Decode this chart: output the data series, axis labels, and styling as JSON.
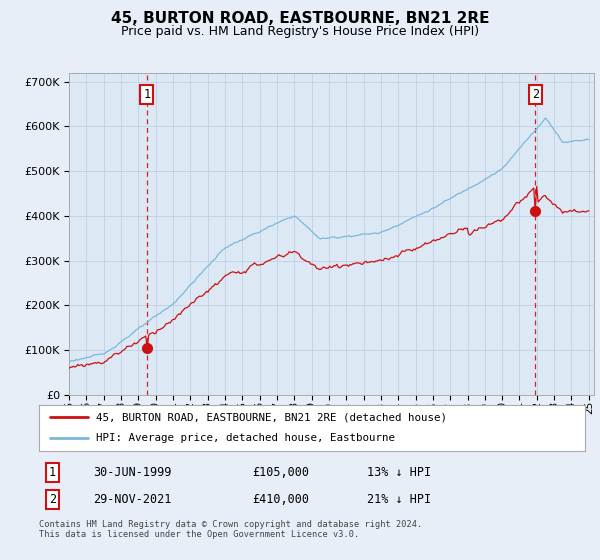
{
  "title": "45, BURTON ROAD, EASTBOURNE, BN21 2RE",
  "subtitle": "Price paid vs. HM Land Registry's House Price Index (HPI)",
  "title_fontsize": 11,
  "subtitle_fontsize": 9,
  "background_color": "#e8eef8",
  "plot_bg_color": "#dde8f5",
  "ylim": [
    0,
    720000
  ],
  "yticks": [
    0,
    100000,
    200000,
    300000,
    400000,
    500000,
    600000,
    700000
  ],
  "legend1_label": "45, BURTON ROAD, EASTBOURNE, BN21 2RE (detached house)",
  "legend2_label": "HPI: Average price, detached house, Eastbourne",
  "marker1_value": 105000,
  "marker1_date": "30-JUN-1999",
  "marker1_year": 1999.5,
  "marker1_hpi_text": "13% ↓ HPI",
  "marker2_value": 410000,
  "marker2_date": "29-NOV-2021",
  "marker2_year": 2021.91,
  "marker2_hpi_text": "21% ↓ HPI",
  "footer_text": "Contains HM Land Registry data © Crown copyright and database right 2024.\nThis data is licensed under the Open Government Licence v3.0.",
  "hpi_color": "#7ab8d9",
  "price_color": "#cc1111",
  "dashed_line_color": "#cc1111",
  "grid_color": "#c0d0e8"
}
